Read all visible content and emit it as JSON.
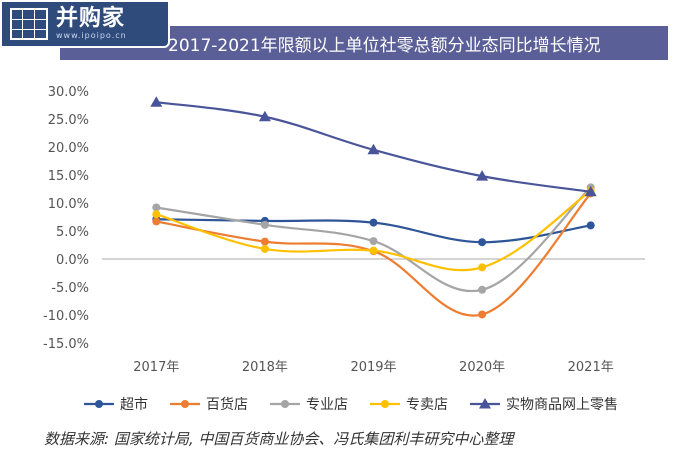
{
  "logo": {
    "text": "并购家",
    "sub": "www.ipoipo.cn"
  },
  "chart_data": {
    "type": "line",
    "title": "2017-2021年限额以上单位社零总额分业态同比增长情况",
    "categories": [
      "2017年",
      "2018年",
      "2019年",
      "2020年",
      "2021年"
    ],
    "ylim": [
      -15,
      30
    ],
    "yticks": [
      "30.0%",
      "25.0%",
      "20.0%",
      "15.0%",
      "10.0%",
      "5.0%",
      "0.0%",
      "-5.0%",
      "-10.0%",
      "-15.0%"
    ],
    "series": [
      {
        "name": "超市",
        "color": "#2e5597",
        "marker": "circle",
        "values": [
          7.1,
          6.8,
          6.5,
          3.0,
          6.0
        ]
      },
      {
        "name": "百货店",
        "color": "#ed7d31",
        "marker": "circle",
        "values": [
          6.7,
          3.1,
          1.4,
          -9.9,
          11.7
        ]
      },
      {
        "name": "专业店",
        "color": "#a5a5a5",
        "marker": "circle",
        "values": [
          9.2,
          6.1,
          3.2,
          -5.5,
          12.8
        ]
      },
      {
        "name": "专卖店",
        "color": "#ffc000",
        "marker": "circle",
        "values": [
          8.0,
          1.8,
          1.5,
          -1.5,
          12.2
        ]
      },
      {
        "name": "实物商品网上零售",
        "color": "#4a5599",
        "marker": "triangle",
        "values": [
          28.0,
          25.4,
          19.5,
          14.8,
          12.0
        ]
      }
    ],
    "grid": false,
    "legend": "bottom"
  },
  "source": "数据来源: 国家统计局, 中国百货商业协会、冯氏集团利丰研究中心整理"
}
